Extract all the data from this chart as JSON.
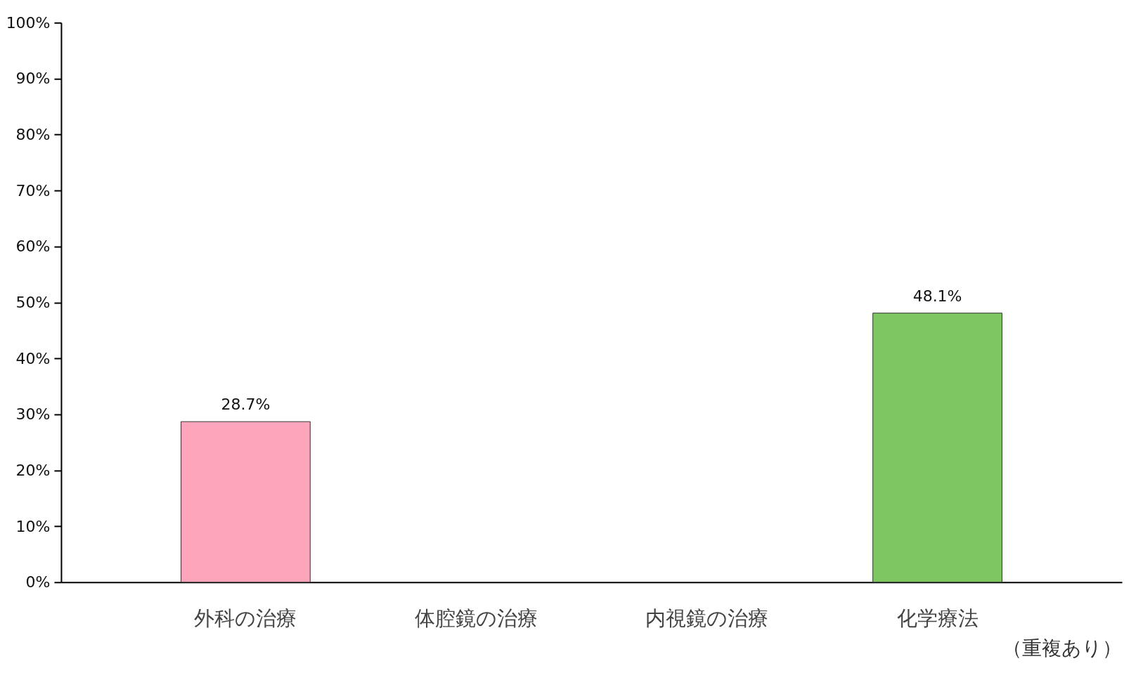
{
  "chart_data": {
    "type": "bar",
    "categories": [
      "外科の治療",
      "体腔鏡の治療",
      "内視鏡の治療",
      "化学療法"
    ],
    "values": [
      28.7,
      null,
      null,
      48.1
    ],
    "colors": [
      "#fca5bb",
      null,
      null,
      "#7dc662"
    ],
    "value_labels": [
      "28.7%",
      null,
      null,
      "48.1%"
    ],
    "ylim": [
      0,
      100
    ],
    "yticks": [
      {
        "value": 0,
        "label": "0%"
      },
      {
        "value": 10,
        "label": "10%"
      },
      {
        "value": 20,
        "label": "20%"
      },
      {
        "value": 30,
        "label": "30%"
      },
      {
        "value": 40,
        "label": "40%"
      },
      {
        "value": 50,
        "label": "50%"
      },
      {
        "value": 60,
        "label": "60%"
      },
      {
        "value": 70,
        "label": "70%"
      },
      {
        "value": 80,
        "label": "80%"
      },
      {
        "value": 90,
        "label": "90%"
      },
      {
        "value": 100,
        "label": "100%"
      }
    ],
    "annotations": [
      "（重複あり）"
    ]
  }
}
